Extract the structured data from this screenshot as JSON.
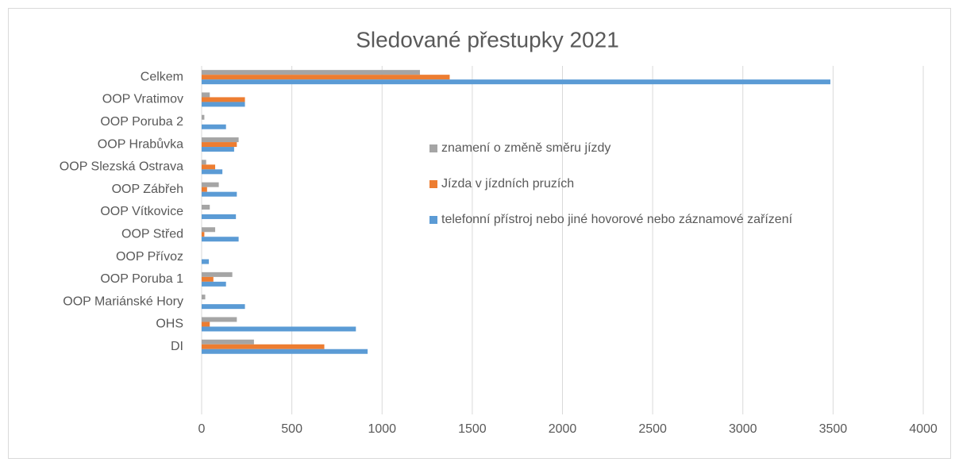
{
  "chart_data": {
    "type": "hbar",
    "title": "Sledované přestupky 2021",
    "categories": [
      "Celkem",
      "OOP Vratimov",
      "OOP Poruba 2",
      "OOP Hrabůvka",
      "OOP Slezská Ostrava",
      "OOP Zábřeh",
      "OOP Vítkovice",
      "OOP Střed",
      "OOP Přívoz",
      "OOP Poruba 1",
      "OOP Mariánské Hory",
      "OHS",
      "DI"
    ],
    "series": [
      {
        "name": "znamení o změně směru jízdy",
        "color": "#a5a5a5",
        "values": [
          1210,
          45,
          15,
          205,
          25,
          95,
          45,
          75,
          0,
          170,
          20,
          195,
          290
        ]
      },
      {
        "name": "Jízda v jízdních pruzích",
        "color": "#ed7d31",
        "values": [
          1375,
          240,
          0,
          195,
          75,
          30,
          0,
          15,
          0,
          65,
          0,
          45,
          680
        ]
      },
      {
        "name": "telefonní přístroj nebo jiné hovorové nebo záznamové zařízení",
        "color": "#5b9bd5",
        "values": [
          3485,
          240,
          135,
          180,
          115,
          195,
          190,
          205,
          40,
          135,
          240,
          855,
          920
        ]
      }
    ],
    "xlim": [
      0,
      4000
    ],
    "xticks": [
      0,
      500,
      1000,
      1500,
      2000,
      2500,
      3000,
      3500,
      4000
    ],
    "grid": true,
    "legend": "right"
  }
}
